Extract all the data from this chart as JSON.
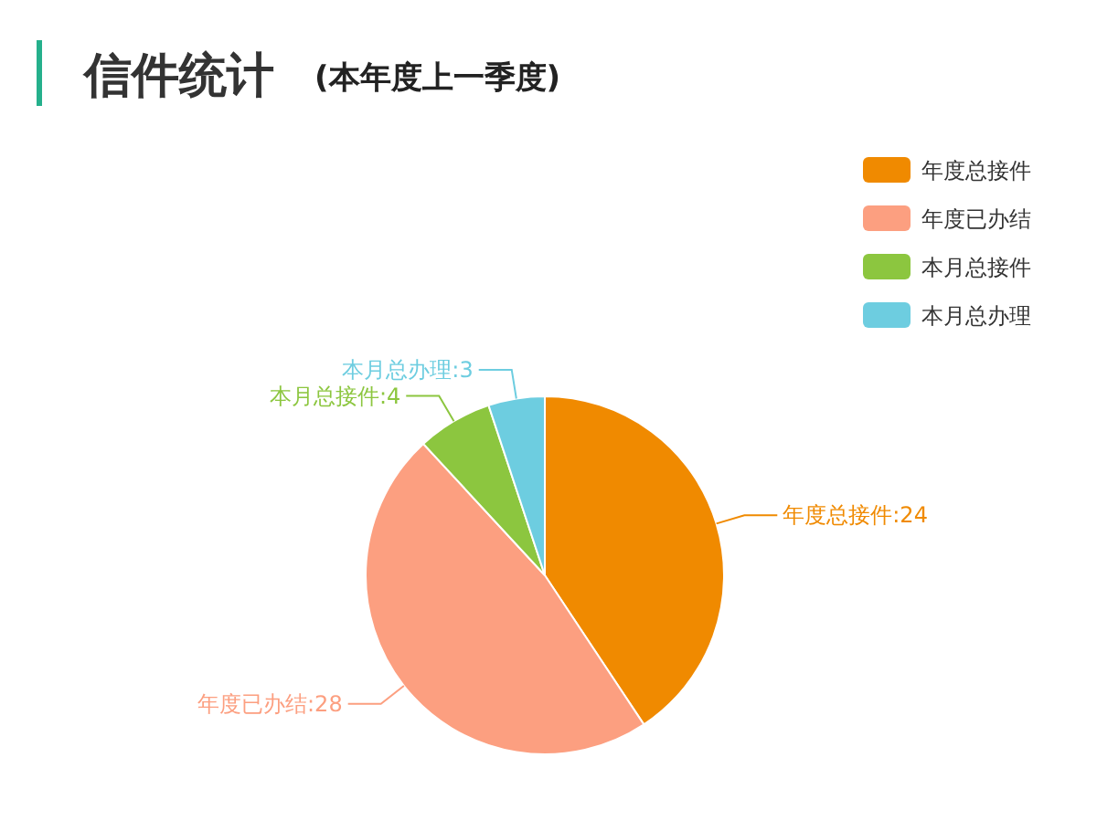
{
  "chart_data": {
    "type": "pie",
    "title": "信件统计",
    "subtitle": "(本年度上一季度)",
    "categories": [
      "年度总接件",
      "年度已办结",
      "本月总接件",
      "本月总办理"
    ],
    "values": [
      24,
      28,
      4,
      3
    ],
    "colors": [
      "#f08a00",
      "#fc9f80",
      "#8cc63f",
      "#6dcde0"
    ],
    "value_labels": [
      "年度总接件:24",
      "年度已办结:28",
      "本月总接件:4",
      "本月总办理:3"
    ],
    "legend": "top right"
  }
}
